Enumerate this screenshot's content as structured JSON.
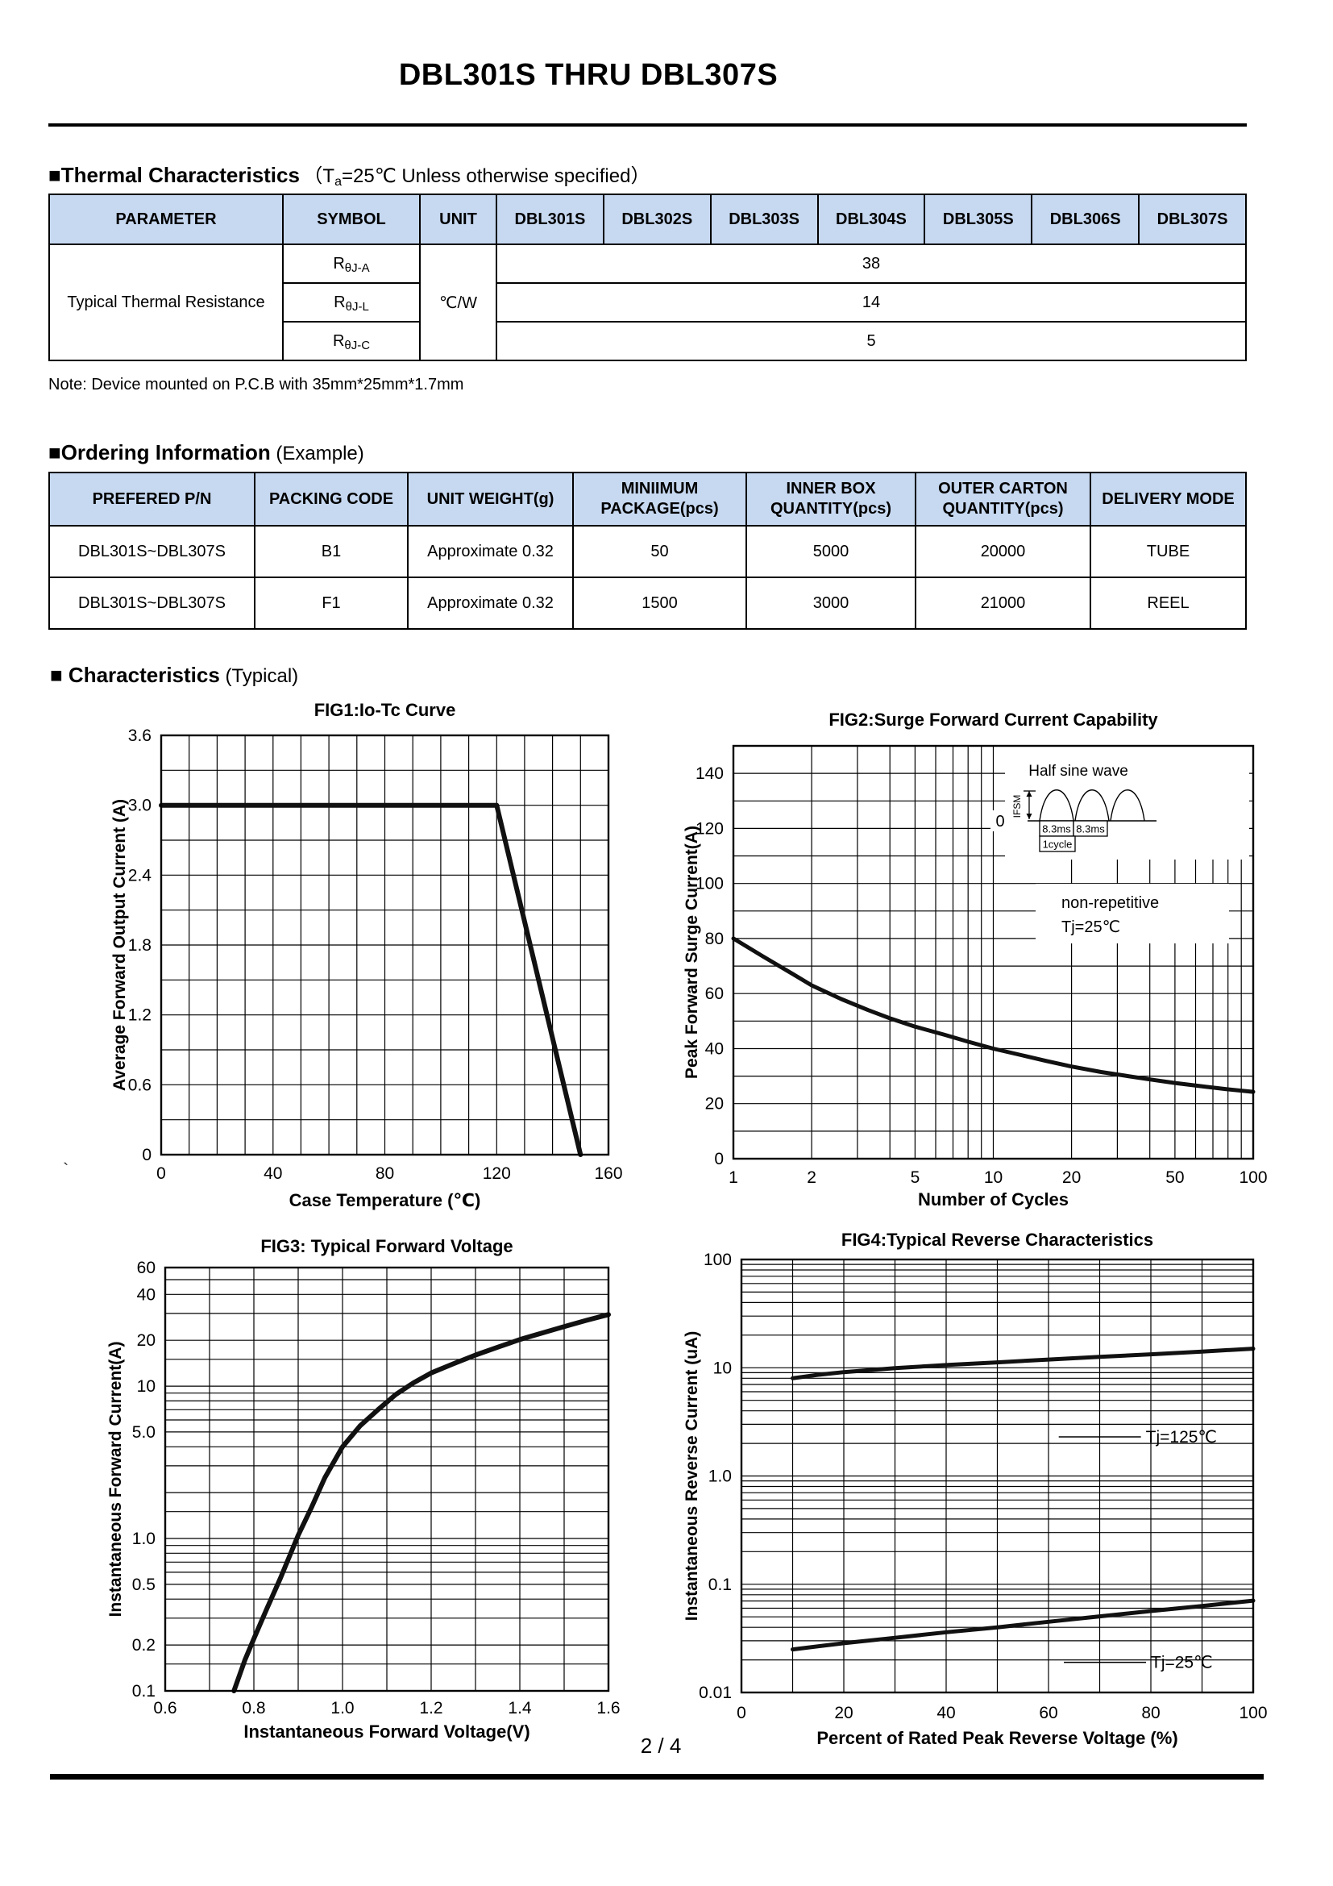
{
  "page": {
    "title": "DBL301S THRU DBL307S",
    "footer": "2 / 4",
    "stray_mark": "`"
  },
  "sections": {
    "thermal": {
      "heading": "■Thermal Characteristics",
      "cond_prefix": "（T",
      "cond_sub": "a",
      "cond_rest": "=25℃ Unless otherwise specified）"
    },
    "note": "Note: Device mounted on P.C.B with 35mm*25mm*1.7mm",
    "ordering": {
      "heading": "■Ordering Information",
      "heading_suffix": " (Example)"
    },
    "characteristics": {
      "heading": "■ Characteristics",
      "heading_suffix": " (Typical)"
    }
  },
  "colors": {
    "table_header_bg": "#c7d9f1",
    "line": "#000000",
    "curve": "#111111"
  },
  "thermal_table": {
    "headers": [
      "PARAMETER",
      "SYMBOL",
      "UNIT",
      "DBL301S",
      "DBL302S",
      "DBL303S",
      "DBL304S",
      "DBL305S",
      "DBL306S",
      "DBL307S"
    ],
    "parameter": "Typical Thermal Resistance",
    "unit": "℃/W",
    "rows": [
      {
        "sym_base": "R",
        "sym_sub": "θJ-A",
        "value": "38"
      },
      {
        "sym_base": "R",
        "sym_sub": "θJ-L",
        "value": "14"
      },
      {
        "sym_base": "R",
        "sym_sub": "θJ-C",
        "value": "5"
      }
    ]
  },
  "ordering_table": {
    "headers": [
      "PREFERED P/N",
      "PACKING CODE",
      "UNIT WEIGHT(g)",
      "MINIIMUM PACKAGE(pcs)",
      "INNER BOX QUANTITY(pcs)",
      "OUTER CARTON QUANTITY(pcs)",
      "DELIVERY MODE"
    ],
    "rows": [
      [
        "DBL301S~DBL307S",
        "B1",
        "Approximate 0.32",
        "50",
        "5000",
        "20000",
        "TUBE"
      ],
      [
        "DBL301S~DBL307S",
        "F1",
        "Approximate 0.32",
        "1500",
        "3000",
        "21000",
        "REEL"
      ]
    ]
  },
  "chart_data": [
    {
      "id": "fig1",
      "type": "line",
      "title": "FIG1:Io-Tc Curve",
      "xlabel": "Case Temperature (℃)",
      "ylabel": "Average Forward Output Current (A)",
      "x": {
        "scale": "linear",
        "min": 0,
        "max": 160,
        "grid_step": 10,
        "ticks": [
          [
            0,
            "0"
          ],
          [
            40,
            "40"
          ],
          [
            80,
            "80"
          ],
          [
            120,
            "120"
          ],
          [
            160,
            "160"
          ]
        ]
      },
      "y": {
        "scale": "linear",
        "min": 0,
        "max": 3.6,
        "grid_step": 0.3,
        "ticks": [
          [
            0,
            "0"
          ],
          [
            0.6,
            "0.6"
          ],
          [
            1.2,
            "1.2"
          ],
          [
            1.8,
            "1.8"
          ],
          [
            2.4,
            "2.4"
          ],
          [
            3.0,
            "3.0"
          ],
          [
            3.6,
            "3.6"
          ]
        ]
      },
      "series": [
        {
          "name": "io",
          "points": [
            [
              0,
              3.0
            ],
            [
              120,
              3.0
            ],
            [
              150,
              0
            ]
          ]
        }
      ]
    },
    {
      "id": "fig2",
      "type": "line",
      "title": "FIG2:Surge Forward Current Capability",
      "xlabel": "Number of Cycles",
      "ylabel": "Peak Forward Surge Current(A)",
      "x": {
        "scale": "log",
        "min": 1,
        "max": 100,
        "mults": [
          1,
          2,
          3,
          4,
          5,
          6,
          7,
          8,
          9
        ],
        "ticks": [
          [
            1,
            "1"
          ],
          [
            2,
            "2"
          ],
          [
            5,
            "5"
          ],
          [
            10,
            "10"
          ],
          [
            20,
            "20"
          ],
          [
            50,
            "50"
          ],
          [
            100,
            "100"
          ]
        ]
      },
      "y": {
        "scale": "linear",
        "min": 0,
        "max": 150,
        "grid_step": 10,
        "ticks": [
          [
            0,
            "0"
          ],
          [
            20,
            "20"
          ],
          [
            40,
            "40"
          ],
          [
            60,
            "60"
          ],
          [
            80,
            "80"
          ],
          [
            100,
            "100"
          ],
          [
            120,
            "120"
          ],
          [
            140,
            "140"
          ]
        ]
      },
      "series": [
        {
          "name": "surge",
          "points": [
            [
              1,
              80
            ],
            [
              1.3,
              73.5
            ],
            [
              1.7,
              67
            ],
            [
              2,
              63
            ],
            [
              2.6,
              58
            ],
            [
              3.3,
              54
            ],
            [
              4,
              51
            ],
            [
              5,
              48
            ],
            [
              6.5,
              45
            ],
            [
              8,
              42.5
            ],
            [
              10,
              40
            ],
            [
              13,
              37.5
            ],
            [
              16,
              35.5
            ],
            [
              20,
              33.5
            ],
            [
              26,
              31.5
            ],
            [
              33,
              30
            ],
            [
              40,
              28.8
            ],
            [
              50,
              27.5
            ],
            [
              65,
              26.2
            ],
            [
              80,
              25.2
            ],
            [
              100,
              24.3
            ]
          ]
        }
      ],
      "inset": {
        "title": "Half sine wave",
        "ifsm": "IFSM",
        "ms1": "8.3ms",
        "ms2": "8.3ms",
        "cycle": "1cycle",
        "zero": "0"
      },
      "note_lines": [
        "non-repetitive",
        "Tj=25℃"
      ]
    },
    {
      "id": "fig3",
      "type": "line",
      "title": "FIG3: Typical Forward Voltage",
      "xlabel": "Instantaneous Forward Voltage(V)",
      "ylabel": "Instantaneous Forward Current(A)",
      "x": {
        "scale": "linear",
        "min": 0.6,
        "max": 1.6,
        "grid_step": 0.1,
        "ticks": [
          [
            0.6,
            "0.6"
          ],
          [
            0.8,
            "0.8"
          ],
          [
            1.0,
            "1.0"
          ],
          [
            1.2,
            "1.2"
          ],
          [
            1.4,
            "1.4"
          ],
          [
            1.6,
            "1.6"
          ]
        ]
      },
      "y": {
        "scale": "log",
        "min": 0.1,
        "max": 60,
        "mults": [
          1,
          1.5,
          2,
          3,
          4,
          5,
          6,
          7,
          8,
          9
        ],
        "ticks": [
          [
            60,
            "60"
          ],
          [
            40,
            "40"
          ],
          [
            20,
            "20"
          ],
          [
            10,
            "10"
          ],
          [
            5,
            "5.0"
          ],
          [
            1,
            "1.0"
          ],
          [
            0.5,
            "0.5"
          ],
          [
            0.2,
            "0.2"
          ],
          [
            0.1,
            "0.1"
          ]
        ]
      },
      "series": [
        {
          "name": "vf",
          "points": [
            [
              0.755,
              0.1
            ],
            [
              0.78,
              0.16
            ],
            [
              0.8,
              0.22
            ],
            [
              0.83,
              0.35
            ],
            [
              0.86,
              0.55
            ],
            [
              0.9,
              1.05
            ],
            [
              0.93,
              1.6
            ],
            [
              0.96,
              2.5
            ],
            [
              1.0,
              4.0
            ],
            [
              1.04,
              5.5
            ],
            [
              1.08,
              7.0
            ],
            [
              1.12,
              8.8
            ],
            [
              1.16,
              10.5
            ],
            [
              1.2,
              12.2
            ],
            [
              1.25,
              14.0
            ],
            [
              1.3,
              16.0
            ],
            [
              1.35,
              18.0
            ],
            [
              1.4,
              20.2
            ],
            [
              1.45,
              22.3
            ],
            [
              1.5,
              24.6
            ],
            [
              1.55,
              27.0
            ],
            [
              1.6,
              29.5
            ]
          ]
        }
      ]
    },
    {
      "id": "fig4",
      "type": "line",
      "title": "FIG4:Typical Reverse Characteristics",
      "xlabel": "Percent of Rated Peak Reverse Voltage  (%)",
      "ylabel": "Instantaneous Reverse Current (uA)",
      "x": {
        "scale": "linear",
        "min": 0,
        "max": 100,
        "grid_step": 10,
        "ticks": [
          [
            0,
            "0"
          ],
          [
            20,
            "20"
          ],
          [
            40,
            "40"
          ],
          [
            60,
            "60"
          ],
          [
            80,
            "80"
          ],
          [
            100,
            "100"
          ]
        ]
      },
      "y": {
        "scale": "log",
        "min": 0.01,
        "max": 100,
        "ticks": [
          [
            100,
            "100"
          ],
          [
            10,
            "10"
          ],
          [
            1,
            "1.0"
          ],
          [
            0.1,
            "0.1"
          ],
          [
            0.01,
            "0.01"
          ]
        ]
      },
      "series": [
        {
          "name": "tj125",
          "points": [
            [
              10,
              8
            ],
            [
              15,
              8.6
            ],
            [
              20,
              9.1
            ],
            [
              25,
              9.5
            ],
            [
              30,
              9.9
            ],
            [
              40,
              10.6
            ],
            [
              50,
              11.2
            ],
            [
              60,
              11.9
            ],
            [
              70,
              12.6
            ],
            [
              80,
              13.3
            ],
            [
              90,
              14.1
            ],
            [
              100,
              15
            ]
          ]
        },
        {
          "name": "tj25",
          "points": [
            [
              10,
              0.025
            ],
            [
              20,
              0.0285
            ],
            [
              30,
              0.032
            ],
            [
              40,
              0.036
            ],
            [
              50,
              0.04
            ],
            [
              60,
              0.045
            ],
            [
              70,
              0.0505
            ],
            [
              80,
              0.0565
            ],
            [
              90,
              0.063
            ],
            [
              100,
              0.0705
            ]
          ]
        }
      ],
      "labels": [
        {
          "text": "Tj=125℃",
          "x": 79,
          "y": 2.3,
          "leader_from_x": 62
        },
        {
          "text": "Tj=25℃",
          "x": 80,
          "y": 0.019,
          "leader_from_x": 63
        }
      ]
    }
  ]
}
